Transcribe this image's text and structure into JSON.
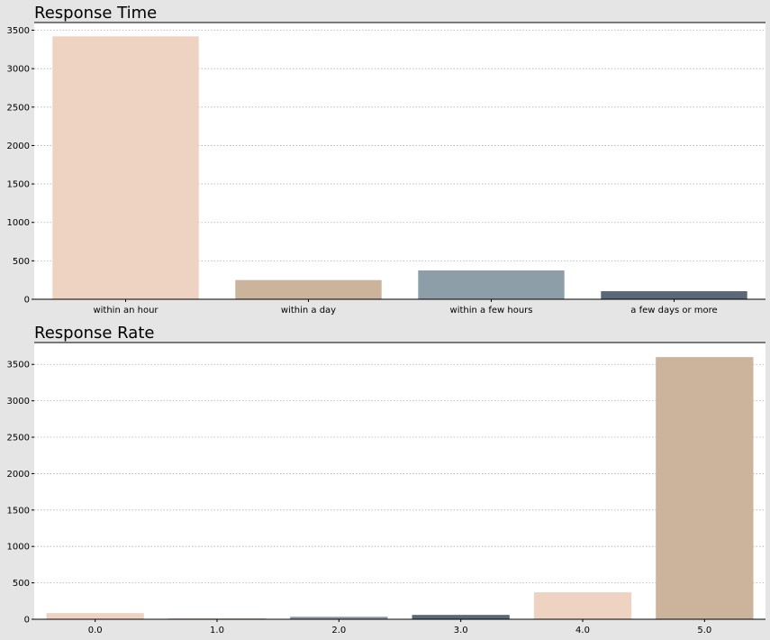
{
  "colors": {
    "figure_background": "#e5e5e5",
    "plot_background": "#ffffff",
    "palette": [
      "#eed3c3",
      "#cbb39c",
      "#8e9ea9",
      "#5a6977"
    ]
  },
  "chart_data": [
    {
      "type": "bar",
      "title": "Response Time",
      "xlabel": "",
      "ylabel": "",
      "categories": [
        "within an hour",
        "within a day",
        "within a few hours",
        "a few days or more"
      ],
      "values": [
        3420,
        250,
        375,
        105
      ],
      "ylim": [
        0,
        3600
      ],
      "yticks": [
        0,
        500,
        1000,
        1500,
        2000,
        2500,
        3000,
        3500
      ],
      "bar_colors": [
        "#eed3c3",
        "#cbb39c",
        "#8e9ea9",
        "#5a6977"
      ],
      "grid": true,
      "legend": "none"
    },
    {
      "type": "bar",
      "title": "Response Rate",
      "xlabel": "",
      "ylabel": "",
      "categories": [
        "0.0",
        "1.0",
        "2.0",
        "3.0",
        "4.0",
        "5.0"
      ],
      "values": [
        85,
        10,
        35,
        60,
        370,
        3600
      ],
      "ylim": [
        0,
        3800
      ],
      "yticks": [
        0,
        500,
        1000,
        1500,
        2000,
        2500,
        3000,
        3500
      ],
      "bar_colors": [
        "#eed3c3",
        "#cbb39c",
        "#8e9ea9",
        "#5a6977",
        "#eed3c3",
        "#cbb39c"
      ],
      "grid": true,
      "legend": "none"
    }
  ]
}
